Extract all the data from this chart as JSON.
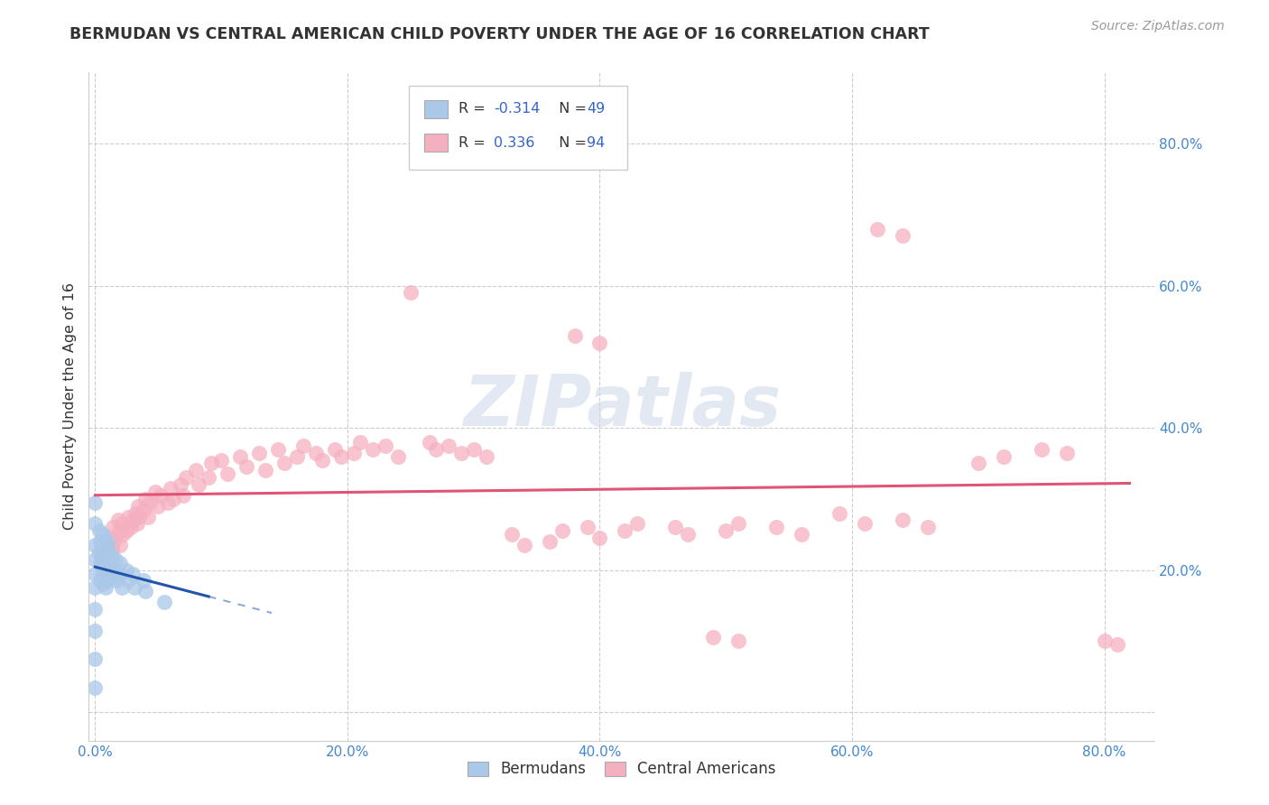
{
  "title": "BERMUDAN VS CENTRAL AMERICAN CHILD POVERTY UNDER THE AGE OF 16 CORRELATION CHART",
  "source": "Source: ZipAtlas.com",
  "ylabel": "Child Poverty Under the Age of 16",
  "ytick_vals": [
    0.0,
    0.2,
    0.4,
    0.6,
    0.8
  ],
  "ytick_labels_right": [
    "",
    "20.0%",
    "40.0%",
    "60.0%",
    "80.0%"
  ],
  "xtick_vals": [
    0.0,
    0.2,
    0.4,
    0.6,
    0.8
  ],
  "xtick_labels": [
    "0.0%",
    "20.0%",
    "40.0%",
    "60.0%",
    "80.0%"
  ],
  "xlim": [
    -0.005,
    0.84
  ],
  "ylim": [
    -0.04,
    0.9
  ],
  "legend_labels": [
    "Bermudans",
    "Central Americans"
  ],
  "watermark": "ZIPatlas",
  "blue_scatter_color": "#aac8e8",
  "pink_scatter_color": "#f5b0c0",
  "blue_line_color": "#2255aa",
  "pink_line_color": "#e05575",
  "tick_color": "#4488cc",
  "grid_color": "#cccccc",
  "bermudans_x": [
    0.0,
    0.0,
    0.0,
    0.0,
    0.0,
    0.0,
    0.0,
    0.0,
    0.0,
    0.0,
    0.003,
    0.003,
    0.004,
    0.004,
    0.004,
    0.006,
    0.006,
    0.006,
    0.006,
    0.006,
    0.006,
    0.006,
    0.008,
    0.008,
    0.008,
    0.008,
    0.008,
    0.01,
    0.01,
    0.01,
    0.01,
    0.01,
    0.01,
    0.013,
    0.013,
    0.014,
    0.016,
    0.016,
    0.017,
    0.02,
    0.02,
    0.021,
    0.025,
    0.026,
    0.03,
    0.031,
    0.038,
    0.04,
    0.055
  ],
  "bermudans_y": [
    0.295,
    0.265,
    0.235,
    0.215,
    0.195,
    0.175,
    0.145,
    0.115,
    0.075,
    0.035,
    0.255,
    0.225,
    0.24,
    0.21,
    0.185,
    0.25,
    0.235,
    0.225,
    0.215,
    0.205,
    0.195,
    0.18,
    0.235,
    0.225,
    0.21,
    0.195,
    0.175,
    0.24,
    0.23,
    0.22,
    0.21,
    0.2,
    0.185,
    0.22,
    0.205,
    0.19,
    0.215,
    0.2,
    0.185,
    0.21,
    0.195,
    0.175,
    0.2,
    0.185,
    0.195,
    0.175,
    0.185,
    0.17,
    0.155
  ],
  "central_americans_x": [
    0.005,
    0.007,
    0.008,
    0.012,
    0.013,
    0.014,
    0.015,
    0.018,
    0.019,
    0.02,
    0.021,
    0.022,
    0.025,
    0.026,
    0.028,
    0.03,
    0.032,
    0.033,
    0.034,
    0.035,
    0.038,
    0.04,
    0.042,
    0.043,
    0.048,
    0.05,
    0.052,
    0.058,
    0.06,
    0.062,
    0.068,
    0.07,
    0.072,
    0.08,
    0.082,
    0.09,
    0.092,
    0.1,
    0.105,
    0.115,
    0.12,
    0.13,
    0.135,
    0.145,
    0.15,
    0.16,
    0.165,
    0.175,
    0.18,
    0.19,
    0.195,
    0.205,
    0.21,
    0.22,
    0.23,
    0.24,
    0.25,
    0.265,
    0.27,
    0.28,
    0.29,
    0.3,
    0.31,
    0.33,
    0.34,
    0.36,
    0.37,
    0.39,
    0.4,
    0.42,
    0.43,
    0.46,
    0.47,
    0.5,
    0.51,
    0.54,
    0.56,
    0.59,
    0.61,
    0.64,
    0.66,
    0.7,
    0.72,
    0.75,
    0.77,
    0.8,
    0.81,
    0.38,
    0.4,
    0.62,
    0.64,
    0.49,
    0.51
  ],
  "central_americans_y": [
    0.215,
    0.2,
    0.225,
    0.245,
    0.23,
    0.26,
    0.24,
    0.27,
    0.255,
    0.235,
    0.265,
    0.25,
    0.255,
    0.275,
    0.26,
    0.27,
    0.28,
    0.265,
    0.29,
    0.275,
    0.285,
    0.3,
    0.275,
    0.295,
    0.31,
    0.29,
    0.305,
    0.295,
    0.315,
    0.3,
    0.32,
    0.305,
    0.33,
    0.34,
    0.32,
    0.33,
    0.35,
    0.355,
    0.335,
    0.36,
    0.345,
    0.365,
    0.34,
    0.37,
    0.35,
    0.36,
    0.375,
    0.365,
    0.355,
    0.37,
    0.36,
    0.365,
    0.38,
    0.37,
    0.375,
    0.36,
    0.59,
    0.38,
    0.37,
    0.375,
    0.365,
    0.37,
    0.36,
    0.25,
    0.235,
    0.24,
    0.255,
    0.26,
    0.245,
    0.255,
    0.265,
    0.26,
    0.25,
    0.255,
    0.265,
    0.26,
    0.25,
    0.28,
    0.265,
    0.27,
    0.26,
    0.35,
    0.36,
    0.37,
    0.365,
    0.1,
    0.095,
    0.53,
    0.52,
    0.68,
    0.67,
    0.105,
    0.1
  ]
}
